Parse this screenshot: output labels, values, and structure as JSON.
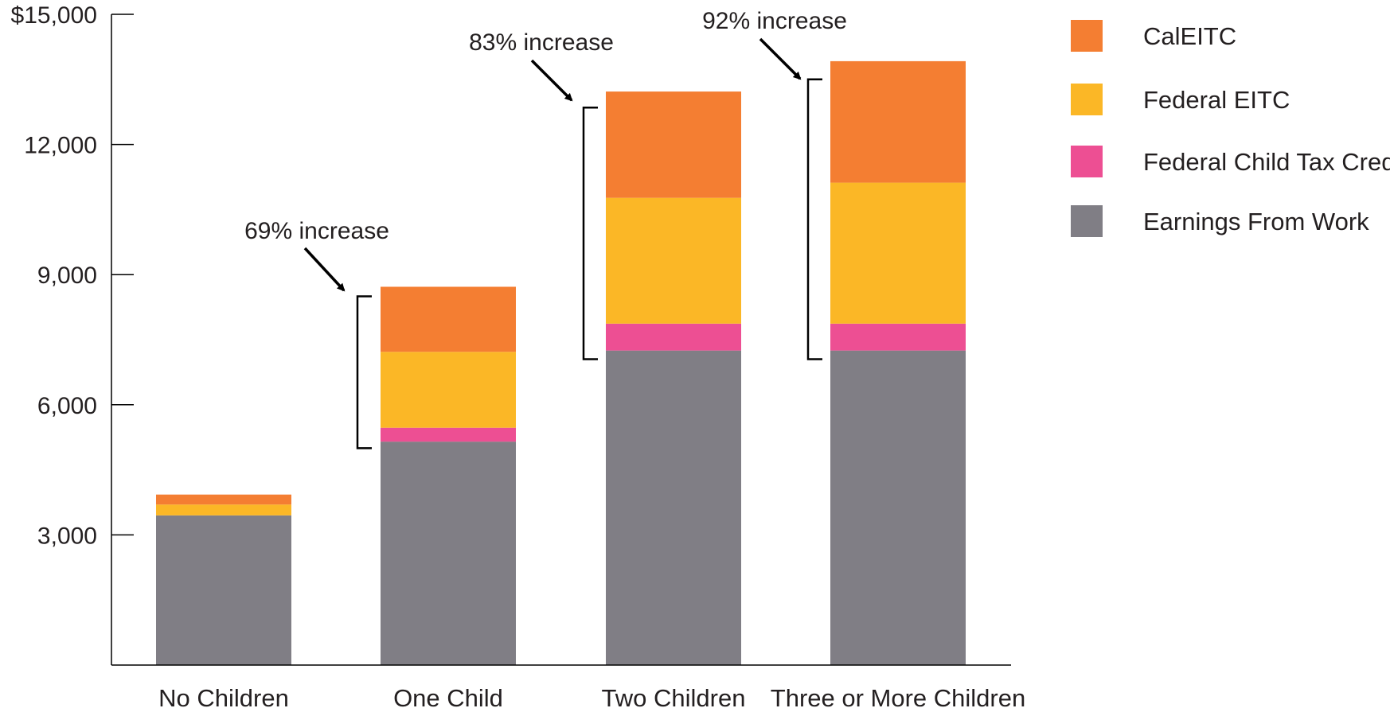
{
  "chart_data": {
    "type": "bar",
    "stacked": true,
    "categories": [
      "No Children",
      "One Child",
      "Two Children",
      "Three or More Children"
    ],
    "series": [
      {
        "name": "Earnings From Work",
        "color": "#807e85",
        "values": [
          3450,
          5150,
          7250,
          7250
        ]
      },
      {
        "name": "Federal Child Tax Credit",
        "color": "#ed4f93",
        "values": [
          0,
          320,
          620,
          620
        ]
      },
      {
        "name": "Federal EITC",
        "color": "#fbb726",
        "values": [
          250,
          1750,
          2900,
          3250
        ]
      },
      {
        "name": "CalEITC",
        "color": "#f47e32",
        "values": [
          230,
          1500,
          2450,
          2800
        ]
      }
    ],
    "y_ticks": [
      {
        "value": 3000,
        "label": "3,000"
      },
      {
        "value": 6000,
        "label": "6,000"
      },
      {
        "value": 9000,
        "label": "9,000"
      },
      {
        "value": 12000,
        "label": "12,000"
      },
      {
        "value": 15000,
        "label": "$15,000"
      }
    ],
    "ylim": [
      0,
      15000
    ],
    "annotations": [
      {
        "category": "One Child",
        "text": "69% increase",
        "bracket_from": 5000,
        "bracket_to": 8500
      },
      {
        "category": "Two Children",
        "text": "83% increase",
        "bracket_from": 7050,
        "bracket_to": 12850
      },
      {
        "category": "Three or More Children",
        "text": "92% increase",
        "bracket_from": 7050,
        "bracket_to": 13500
      }
    ],
    "legend": {
      "position": "right",
      "order": [
        "CalEITC",
        "Federal EITC",
        "Federal Child Tax Credit",
        "Earnings From Work"
      ]
    },
    "grid": false,
    "title": "",
    "xlabel": "",
    "ylabel": ""
  }
}
